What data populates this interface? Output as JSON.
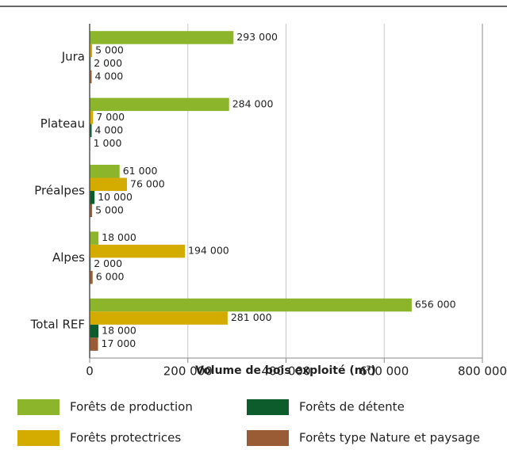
{
  "chart_data": {
    "type": "hbar",
    "x_label": "Volume de bois exploité (m³)",
    "categories": [
      "Jura",
      "Plateau",
      "Préalpes",
      "Alpes",
      "Total REF"
    ],
    "series": [
      {
        "name": "Forêts de production",
        "color": "#8db52b",
        "values": [
          293000,
          284000,
          61000,
          18000,
          656000
        ],
        "value_labels": [
          "293 000",
          "284 000",
          "61 000",
          "18 000",
          "656 000"
        ]
      },
      {
        "name": "Forêts protectrices",
        "color": "#d4ac00",
        "values": [
          5000,
          7000,
          76000,
          194000,
          281000
        ],
        "value_labels": [
          "5 000",
          "7 000",
          "76 000",
          "194 000",
          "281 000"
        ]
      },
      {
        "name": "Forêts de détente",
        "color": "#0c5c2c",
        "values": [
          2000,
          4000,
          10000,
          2000,
          18000
        ],
        "value_labels": [
          "2 000",
          "4 000",
          "10 000",
          "2 000",
          "18 000"
        ]
      },
      {
        "name": "Forêts type Nature et paysage",
        "color": "#9a5c35",
        "values": [
          4000,
          1000,
          5000,
          6000,
          17000
        ],
        "value_labels": [
          "4 000",
          "1 000",
          "5 000",
          "6 000",
          "17 000"
        ]
      }
    ],
    "xlim": [
      0,
      800000
    ],
    "xticks": [
      0,
      {
        "value": 200000,
        "label": "200 000"
      },
      {
        "value": 400000,
        "label": "400 000"
      },
      {
        "value": 600000,
        "label": "600 000"
      },
      {
        "value": 800000,
        "label": "800 000"
      }
    ],
    "grid": true
  }
}
